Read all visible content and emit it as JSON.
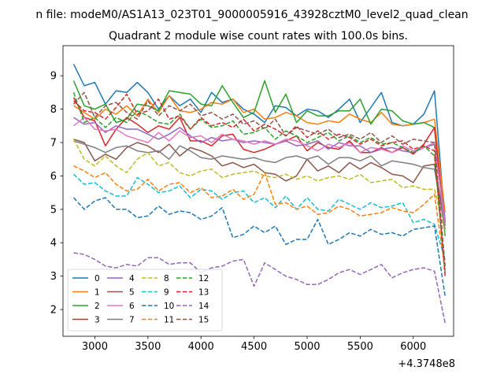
{
  "figure": {
    "suptitle": "n file: modeM0/AS1A13_023T01_9000005916_43928cztM0_level2_quad_clean"
  },
  "chart_data": {
    "type": "line",
    "title": "Quadrant 2 module wise count rates with 100.0s bins.",
    "xlabel": "",
    "ylabel": "",
    "x_offset_label": "+4.3748e8",
    "x_offset": 437480000,
    "xlim": [
      2700,
      6380
    ],
    "ylim": [
      1.2,
      9.9
    ],
    "xticks": [
      3000,
      3500,
      4000,
      4500,
      5000,
      5500,
      6000
    ],
    "yticks": [
      2,
      3,
      4,
      5,
      6,
      7,
      8,
      9
    ],
    "grid": false,
    "legend": {
      "placement": "lower-left",
      "ncol": 4
    },
    "x": [
      2800,
      2900,
      3000,
      3100,
      3200,
      3300,
      3400,
      3500,
      3600,
      3700,
      3800,
      3900,
      4000,
      4100,
      4200,
      4300,
      4400,
      4500,
      4600,
      4700,
      4800,
      4900,
      5000,
      5100,
      5200,
      5300,
      5400,
      5500,
      5600,
      5700,
      5800,
      5900,
      6000,
      6100,
      6200,
      6300
    ],
    "series": [
      {
        "name": "0",
        "color": "#1f77b4",
        "dash": "solid",
        "values": [
          9.35,
          8.7,
          8.8,
          8.15,
          8.55,
          8.5,
          8.8,
          8.5,
          8.0,
          8.4,
          8.1,
          8.3,
          7.9,
          8.5,
          8.2,
          8.3,
          8.0,
          7.85,
          7.6,
          8.1,
          8.05,
          7.8,
          8.0,
          7.95,
          7.75,
          8.0,
          8.3,
          7.6,
          8.05,
          8.5,
          7.6,
          7.5,
          7.55,
          7.85,
          8.55,
          4.6
        ]
      },
      {
        "name": "1",
        "color": "#ff7f0e",
        "dash": "solid",
        "values": [
          8.1,
          7.9,
          7.7,
          8.0,
          7.85,
          8.1,
          7.8,
          8.3,
          7.9,
          8.4,
          7.95,
          7.9,
          8.0,
          8.2,
          8.15,
          8.3,
          7.9,
          8.0,
          7.7,
          7.75,
          7.9,
          7.8,
          7.6,
          7.55,
          7.65,
          7.6,
          7.85,
          7.7,
          7.6,
          7.9,
          7.55,
          7.5,
          7.55,
          7.6,
          7.7,
          4.9
        ]
      },
      {
        "name": "2",
        "color": "#2ca02c",
        "dash": "solid",
        "values": [
          8.85,
          8.1,
          8.0,
          8.15,
          7.6,
          7.7,
          8.15,
          8.1,
          7.95,
          8.55,
          8.5,
          8.45,
          8.15,
          8.1,
          8.7,
          8.2,
          7.75,
          7.9,
          8.85,
          7.9,
          8.45,
          7.6,
          7.95,
          7.8,
          7.8,
          7.95,
          7.95,
          8.3,
          7.55,
          8.0,
          7.95,
          7.65,
          7.55,
          7.6,
          7.45,
          4.2
        ]
      },
      {
        "name": "3",
        "color": "#d62728",
        "dash": "solid",
        "values": [
          8.35,
          7.75,
          7.65,
          6.9,
          7.4,
          7.75,
          7.55,
          7.3,
          7.5,
          7.4,
          7.75,
          7.05,
          7.05,
          6.9,
          7.2,
          7.25,
          6.8,
          6.7,
          6.8,
          6.95,
          7.05,
          7.2,
          6.75,
          7.0,
          6.85,
          6.8,
          7.05,
          6.7,
          6.7,
          6.85,
          6.7,
          6.85,
          6.65,
          6.95,
          7.45,
          4.5
        ]
      },
      {
        "name": "4",
        "color": "#9467bd",
        "dash": "solid",
        "values": [
          7.75,
          7.55,
          7.6,
          7.3,
          7.5,
          7.4,
          7.4,
          7.25,
          7.1,
          7.25,
          7.45,
          7.2,
          7.0,
          7.15,
          7.05,
          7.1,
          7.0,
          7.05,
          7.0,
          6.95,
          7.05,
          6.9,
          6.95,
          7.05,
          6.8,
          7.0,
          6.9,
          6.9,
          6.7,
          6.8,
          6.85,
          6.75,
          6.7,
          6.85,
          6.95,
          4.7
        ]
      },
      {
        "name": "5",
        "color": "#8c564b",
        "dash": "solid",
        "values": [
          7.1,
          7.0,
          6.45,
          6.65,
          6.5,
          6.85,
          7.0,
          6.9,
          6.7,
          6.95,
          6.6,
          6.85,
          6.75,
          6.6,
          6.3,
          6.4,
          6.25,
          6.35,
          6.1,
          6.05,
          5.85,
          6.0,
          6.5,
          6.15,
          6.3,
          6.1,
          6.4,
          6.2,
          6.4,
          6.25,
          6.05,
          6.0,
          5.8,
          6.3,
          6.35,
          4.5
        ]
      },
      {
        "name": "6",
        "color": "#e377c2",
        "dash": "solid",
        "values": [
          7.5,
          7.75,
          7.4,
          7.35,
          7.4,
          7.2,
          7.1,
          7.0,
          7.3,
          7.05,
          7.35,
          7.15,
          7.2,
          7.0,
          7.25,
          7.1,
          7.05,
          6.95,
          7.05,
          6.95,
          7.1,
          7.05,
          6.9,
          6.75,
          6.95,
          6.85,
          7.0,
          6.7,
          6.85,
          6.8,
          6.7,
          6.9,
          6.75,
          6.85,
          7.0,
          4.5
        ]
      },
      {
        "name": "7",
        "color": "#7f7f7f",
        "dash": "solid",
        "values": [
          7.05,
          6.95,
          6.85,
          6.7,
          6.85,
          6.9,
          6.75,
          6.7,
          6.75,
          6.5,
          6.9,
          6.75,
          6.55,
          6.5,
          6.6,
          6.55,
          6.5,
          6.55,
          6.45,
          6.4,
          6.55,
          6.6,
          6.5,
          6.6,
          6.35,
          6.55,
          6.55,
          6.45,
          6.6,
          6.3,
          6.45,
          6.4,
          6.35,
          6.25,
          6.2,
          4.4
        ]
      },
      {
        "name": "8",
        "color": "#bcbd22",
        "dash": "dashed",
        "values": [
          7.1,
          6.5,
          6.3,
          6.6,
          6.3,
          6.1,
          6.5,
          6.7,
          6.3,
          6.4,
          6.1,
          6.0,
          6.15,
          6.2,
          5.95,
          6.05,
          6.1,
          6.15,
          6.0,
          5.95,
          6.05,
          5.9,
          6.0,
          5.85,
          5.95,
          6.0,
          5.9,
          6.05,
          5.8,
          5.85,
          5.9,
          5.65,
          5.7,
          5.6,
          5.6,
          4.3
        ]
      },
      {
        "name": "9",
        "color": "#17becf",
        "dash": "dashed",
        "values": [
          6.05,
          5.75,
          5.8,
          5.55,
          5.4,
          5.4,
          5.95,
          5.75,
          5.5,
          5.55,
          5.7,
          5.35,
          5.6,
          5.55,
          5.3,
          5.5,
          5.55,
          5.2,
          5.35,
          5.05,
          5.4,
          5.0,
          5.35,
          5.0,
          4.95,
          5.3,
          5.15,
          5.0,
          5.2,
          5.05,
          5.1,
          5.2,
          4.6,
          4.7,
          4.55,
          3.5
        ]
      },
      {
        "name": "10",
        "color": "#1f77b4",
        "dash": "dashed",
        "values": [
          5.35,
          5.0,
          5.25,
          5.35,
          5.0,
          5.0,
          4.75,
          4.8,
          5.1,
          4.85,
          4.95,
          4.9,
          4.7,
          4.8,
          5.05,
          4.15,
          4.25,
          4.5,
          4.3,
          4.5,
          3.95,
          4.1,
          4.1,
          4.7,
          3.95,
          4.1,
          4.3,
          4.2,
          4.4,
          4.25,
          4.3,
          4.2,
          4.4,
          4.45,
          4.5,
          2.4
        ]
      },
      {
        "name": "11",
        "color": "#ff7f0e",
        "dash": "dashed",
        "values": [
          6.3,
          6.15,
          5.95,
          6.1,
          5.75,
          5.55,
          5.6,
          5.9,
          5.55,
          5.75,
          5.8,
          5.5,
          5.65,
          5.35,
          5.4,
          5.6,
          5.3,
          5.45,
          6.1,
          5.15,
          5.2,
          5.0,
          5.1,
          4.85,
          4.9,
          5.1,
          5.0,
          4.8,
          4.85,
          4.9,
          5.05,
          4.95,
          4.9,
          5.15,
          5.45,
          3.2
        ]
      },
      {
        "name": "12",
        "color": "#2ca02c",
        "dash": "dashed",
        "values": [
          8.5,
          7.6,
          7.75,
          7.45,
          7.75,
          7.6,
          7.95,
          7.8,
          7.6,
          7.55,
          7.85,
          7.4,
          7.7,
          7.45,
          7.5,
          7.65,
          7.25,
          7.3,
          7.45,
          7.1,
          7.35,
          7.2,
          7.0,
          7.15,
          7.3,
          7.05,
          7.2,
          7.0,
          7.15,
          6.95,
          7.0,
          6.85,
          6.7,
          6.9,
          6.6,
          3.1
        ]
      },
      {
        "name": "13",
        "color": "#d62728",
        "dash": "dashed",
        "values": [
          8.25,
          7.95,
          7.9,
          7.7,
          8.05,
          8.45,
          7.85,
          7.95,
          8.3,
          7.7,
          7.8,
          7.4,
          7.75,
          7.5,
          7.6,
          7.45,
          7.7,
          7.35,
          7.55,
          7.4,
          7.2,
          7.5,
          7.15,
          7.35,
          7.1,
          7.25,
          7.15,
          6.95,
          7.1,
          6.9,
          7.0,
          7.05,
          6.8,
          6.9,
          6.75,
          3.0
        ]
      },
      {
        "name": "14",
        "color": "#9467bd",
        "dash": "dashed",
        "values": [
          3.7,
          3.65,
          3.5,
          3.3,
          3.25,
          3.35,
          3.3,
          3.55,
          3.55,
          3.35,
          3.4,
          3.4,
          3.1,
          3.25,
          3.3,
          3.45,
          3.5,
          2.7,
          3.4,
          3.2,
          3.0,
          2.9,
          2.75,
          2.75,
          2.9,
          3.1,
          3.2,
          3.05,
          3.2,
          3.35,
          2.95,
          3.1,
          3.2,
          3.25,
          3.15,
          1.6
        ]
      },
      {
        "name": "15",
        "color": "#8c564b",
        "dash": "dashed",
        "values": [
          8.15,
          8.5,
          7.75,
          8.1,
          8.2,
          7.9,
          7.7,
          8.25,
          7.8,
          8.1,
          7.95,
          8.15,
          7.8,
          7.9,
          7.7,
          7.85,
          7.55,
          7.65,
          7.4,
          7.7,
          7.2,
          7.45,
          7.35,
          7.25,
          7.4,
          7.15,
          7.25,
          7.1,
          7.3,
          7.0,
          7.2,
          6.95,
          7.1,
          7.05,
          7.0,
          3.3
        ]
      }
    ]
  }
}
